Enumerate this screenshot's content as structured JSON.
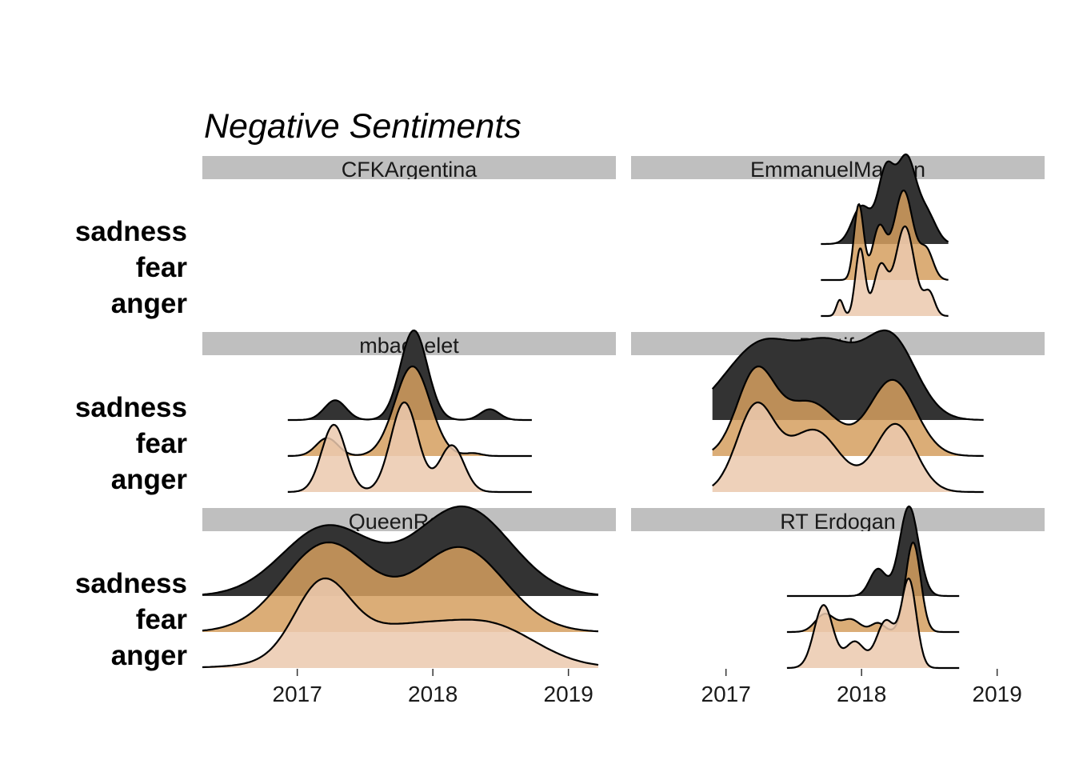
{
  "chart_data": {
    "type": "ridgeline",
    "title": "Negative Sentiments",
    "xlabel": "",
    "ylabel": "",
    "emotions": [
      "sadness",
      "fear",
      "anger"
    ],
    "x_ticks": [
      "2017",
      "2018",
      "2019"
    ],
    "xlim": [
      2016.3,
      2019.35
    ],
    "colors": {
      "sadness": "#333333",
      "fear": "#d59f5f",
      "anger": "#ebc9ae"
    },
    "fill_opacity": {
      "sadness": 1,
      "fear": 0.85,
      "anger": 0.85
    },
    "facets": [
      {
        "name": "CFKArgentina",
        "series": []
      },
      {
        "name": "EmmanuelMacron",
        "series": [
          {
            "name": "sadness",
            "x_range": [
              2017.7,
              2018.64
            ],
            "peaks": [
              [
                2018.0,
                0.07,
                0.45
              ],
              [
                2018.18,
                0.06,
                0.85
              ],
              [
                2018.33,
                0.07,
                1.0
              ],
              [
                2018.48,
                0.07,
                0.35
              ]
            ]
          },
          {
            "name": "fear",
            "x_range": [
              2017.7,
              2018.64
            ],
            "peaks": [
              [
                2017.98,
                0.035,
                0.8
              ],
              [
                2018.13,
                0.05,
                0.55
              ],
              [
                2018.31,
                0.07,
                0.95
              ],
              [
                2018.48,
                0.05,
                0.3
              ]
            ]
          },
          {
            "name": "anger",
            "x_range": [
              2017.7,
              2018.64
            ],
            "peaks": [
              [
                2017.84,
                0.025,
                0.18
              ],
              [
                2017.99,
                0.035,
                0.75
              ],
              [
                2018.14,
                0.05,
                0.55
              ],
              [
                2018.32,
                0.07,
                1.0
              ],
              [
                2018.5,
                0.04,
                0.25
              ]
            ]
          }
        ]
      },
      {
        "name": "mbachelet",
        "series": [
          {
            "name": "sadness",
            "x_range": [
              2016.93,
              2018.73
            ],
            "peaks": [
              [
                2017.28,
                0.08,
                0.22
              ],
              [
                2017.86,
                0.1,
                1.0
              ],
              [
                2018.42,
                0.07,
                0.12
              ]
            ]
          },
          {
            "name": "fear",
            "x_range": [
              2016.93,
              2018.73
            ],
            "peaks": [
              [
                2017.22,
                0.08,
                0.2
              ],
              [
                2017.85,
                0.13,
                1.0
              ],
              [
                2018.3,
                0.06,
                0.03
              ]
            ]
          },
          {
            "name": "anger",
            "x_range": [
              2016.93,
              2018.73
            ],
            "peaks": [
              [
                2017.27,
                0.09,
                0.75
              ],
              [
                2017.79,
                0.1,
                1.0
              ],
              [
                2018.14,
                0.09,
                0.52
              ]
            ]
          }
        ]
      },
      {
        "name": "Pontifex",
        "series": [
          {
            "name": "sadness",
            "x_range": [
              2016.9,
              2018.9
            ],
            "peaks": [
              [
                2017.28,
                0.28,
                0.95
              ],
              [
                2017.78,
                0.2,
                0.72
              ],
              [
                2018.21,
                0.19,
                1.0
              ]
            ]
          },
          {
            "name": "fear",
            "x_range": [
              2016.9,
              2018.9
            ],
            "peaks": [
              [
                2017.22,
                0.14,
                0.95
              ],
              [
                2017.62,
                0.2,
                0.62
              ],
              [
                2018.23,
                0.17,
                0.88
              ]
            ]
          },
          {
            "name": "anger",
            "x_range": [
              2016.9,
              2018.9
            ],
            "peaks": [
              [
                2017.22,
                0.14,
                0.96
              ],
              [
                2017.65,
                0.19,
                0.7
              ],
              [
                2018.25,
                0.15,
                0.77
              ]
            ]
          }
        ]
      },
      {
        "name": "QueenRania",
        "series": [
          {
            "name": "sadness",
            "x_range": [
              2016.3,
              2019.22
            ],
            "peaks": [
              [
                2017.22,
                0.33,
                0.78
              ],
              [
                2018.22,
                0.35,
                1.0
              ]
            ]
          },
          {
            "name": "fear",
            "x_range": [
              2016.3,
              2019.22
            ],
            "peaks": [
              [
                2017.22,
                0.32,
                1.0
              ],
              [
                2018.2,
                0.33,
                0.95
              ]
            ]
          },
          {
            "name": "anger",
            "x_range": [
              2016.3,
              2019.22
            ],
            "peaks": [
              [
                2017.18,
                0.2,
                0.88
              ],
              [
                2017.85,
                0.55,
                0.55
              ],
              [
                2018.5,
                0.3,
                0.28
              ]
            ]
          }
        ]
      },
      {
        "name": "RT_Erdogan",
        "series": [
          {
            "name": "sadness",
            "x_range": [
              2017.45,
              2018.72
            ],
            "peaks": [
              [
                2018.12,
                0.06,
                0.3
              ],
              [
                2018.35,
                0.07,
                1.0
              ]
            ]
          },
          {
            "name": "fear",
            "x_range": [
              2017.45,
              2018.72
            ],
            "peaks": [
              [
                2017.73,
                0.07,
                0.2
              ],
              [
                2017.92,
                0.07,
                0.14
              ],
              [
                2018.12,
                0.05,
                0.1
              ],
              [
                2018.38,
                0.055,
                1.0
              ]
            ]
          },
          {
            "name": "anger",
            "x_range": [
              2017.45,
              2018.72
            ],
            "peaks": [
              [
                2017.72,
                0.07,
                0.6
              ],
              [
                2017.95,
                0.07,
                0.25
              ],
              [
                2018.18,
                0.07,
                0.45
              ],
              [
                2018.35,
                0.055,
                0.83
              ]
            ]
          }
        ]
      }
    ],
    "strip_labels": [
      "CFKArgentina",
      "EmmanuelMacron",
      "mbachelet",
      "Pontifex",
      "QueenRania",
      "RT  Erdogan"
    ]
  }
}
